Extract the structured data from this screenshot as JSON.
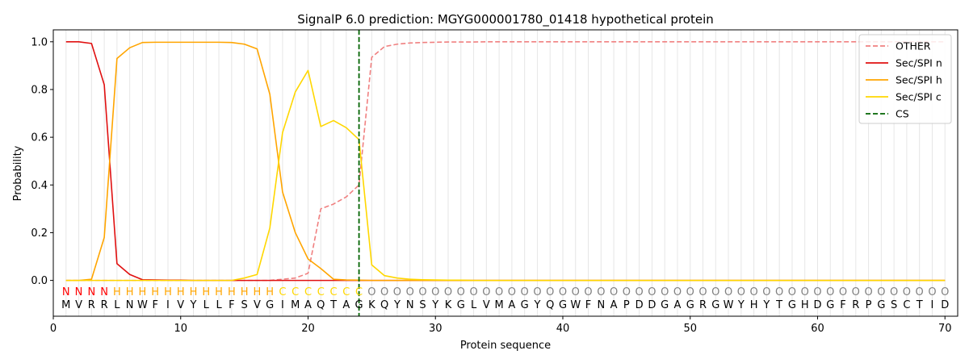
{
  "chart_data": {
    "type": "line",
    "title": "SignalP 6.0 prediction: MGYG000001780_01418 hypothetical protein",
    "xlabel": "Protein sequence",
    "ylabel": "Probability",
    "xlim": [
      0,
      71
    ],
    "ylim": [
      -0.15,
      1.05
    ],
    "xticks": [
      0,
      10,
      20,
      30,
      40,
      50,
      60,
      70
    ],
    "yticks": [
      0.0,
      0.2,
      0.4,
      0.6,
      0.8,
      1.0
    ],
    "sequence": [
      "M",
      "V",
      "R",
      "R",
      "L",
      "N",
      "W",
      "F",
      "I",
      "V",
      "Y",
      "L",
      "L",
      "F",
      "S",
      "V",
      "G",
      "I",
      "M",
      "A",
      "Q",
      "T",
      "A",
      "G",
      "K",
      "Q",
      "Y",
      "N",
      "S",
      "Y",
      "K",
      "G",
      "L",
      "V",
      "M",
      "A",
      "G",
      "Y",
      "Q",
      "G",
      "W",
      "F",
      "N",
      "A",
      "P",
      "D",
      "D",
      "G",
      "A",
      "G",
      "R",
      "G",
      "W",
      "Y",
      "H",
      "Y",
      "T",
      "G",
      "H",
      "D",
      "G",
      "F",
      "R",
      "P",
      "G",
      "S",
      "C",
      "T",
      "I",
      "D"
    ],
    "region_labels": [
      "N",
      "N",
      "N",
      "N",
      "H",
      "H",
      "H",
      "H",
      "H",
      "H",
      "H",
      "H",
      "H",
      "H",
      "H",
      "H",
      "H",
      "C",
      "C",
      "C",
      "C",
      "C",
      "C",
      "C",
      "O",
      "O",
      "O",
      "O",
      "O",
      "O",
      "O",
      "O",
      "O",
      "O",
      "O",
      "O",
      "O",
      "O",
      "O",
      "O",
      "O",
      "O",
      "O",
      "O",
      "O",
      "O",
      "O",
      "O",
      "O",
      "O",
      "O",
      "O",
      "O",
      "O",
      "O",
      "O",
      "O",
      "O",
      "O",
      "O",
      "O",
      "O",
      "O",
      "O",
      "O",
      "O",
      "O",
      "O",
      "O",
      "O"
    ],
    "region_colors": {
      "N": "#ff0000",
      "H": "#ffa500",
      "C": "#ffd700",
      "O": "#808080"
    },
    "series": [
      {
        "name": "OTHER",
        "color": "#f08080",
        "style": "dashed",
        "values": [
          0,
          0,
          0,
          0,
          0,
          0,
          0,
          0,
          0,
          0,
          0,
          0,
          0,
          0,
          0,
          0,
          0,
          0.005,
          0.01,
          0.03,
          0.3,
          0.32,
          0.35,
          0.4,
          0.935,
          0.98,
          0.99,
          0.995,
          0.997,
          0.998,
          0.999,
          0.999,
          0.999,
          1,
          1,
          1,
          1,
          1,
          1,
          1,
          1,
          1,
          1,
          1,
          1,
          1,
          1,
          1,
          1,
          1,
          1,
          1,
          1,
          1,
          1,
          1,
          1,
          1,
          1,
          1,
          1,
          1,
          1,
          1,
          1,
          1,
          1,
          1,
          1,
          1
        ]
      },
      {
        "name": "Sec/SPI n",
        "color": "#e01010",
        "style": "solid",
        "values": [
          1,
          1,
          0.993,
          0.82,
          0.07,
          0.025,
          0.003,
          0.002,
          0.001,
          0.001,
          0,
          0,
          0,
          0,
          0,
          0,
          0,
          0,
          0,
          0,
          0,
          0,
          0,
          0,
          0,
          0,
          0,
          0,
          0,
          0,
          0,
          0,
          0,
          0,
          0,
          0,
          0,
          0,
          0,
          0,
          0,
          0,
          0,
          0,
          0,
          0,
          0,
          0,
          0,
          0,
          0,
          0,
          0,
          0,
          0,
          0,
          0,
          0,
          0,
          0,
          0,
          0,
          0,
          0,
          0,
          0,
          0,
          0,
          0,
          0
        ]
      },
      {
        "name": "Sec/SPI h",
        "color": "#ffa500",
        "style": "solid",
        "values": [
          0,
          0,
          0.005,
          0.18,
          0.93,
          0.975,
          0.997,
          0.998,
          0.998,
          0.998,
          0.998,
          0.998,
          0.998,
          0.997,
          0.99,
          0.97,
          0.78,
          0.37,
          0.2,
          0.09,
          0.05,
          0.005,
          0.002,
          0.001,
          0,
          0,
          0,
          0,
          0,
          0,
          0,
          0,
          0,
          0,
          0,
          0,
          0,
          0,
          0,
          0,
          0,
          0,
          0,
          0,
          0,
          0,
          0,
          0,
          0,
          0,
          0,
          0,
          0,
          0,
          0,
          0,
          0,
          0,
          0,
          0,
          0,
          0,
          0,
          0,
          0,
          0,
          0,
          0,
          0,
          0
        ]
      },
      {
        "name": "Sec/SPI c",
        "color": "#ffd700",
        "style": "solid",
        "values": [
          0,
          0,
          0,
          0,
          0,
          0,
          0,
          0,
          0,
          0,
          0,
          0,
          0,
          0,
          0.01,
          0.025,
          0.22,
          0.62,
          0.79,
          0.88,
          0.645,
          0.67,
          0.64,
          0.59,
          0.065,
          0.02,
          0.01,
          0.005,
          0.003,
          0.002,
          0.001,
          0.001,
          0,
          0,
          0,
          0,
          0,
          0,
          0,
          0,
          0,
          0,
          0,
          0,
          0,
          0,
          0,
          0,
          0,
          0,
          0,
          0,
          0,
          0,
          0,
          0,
          0,
          0,
          0,
          0,
          0,
          0,
          0,
          0,
          0,
          0,
          0,
          0,
          0,
          0
        ]
      }
    ],
    "cleavage_site": {
      "name": "CS",
      "x": 24,
      "color": "#006400",
      "style": "dashed"
    },
    "legend": {
      "placement": "top-right",
      "entries": [
        "OTHER",
        "Sec/SPI n",
        "Sec/SPI h",
        "Sec/SPI c",
        "CS"
      ]
    },
    "grid": "vertical lines at each residue"
  }
}
